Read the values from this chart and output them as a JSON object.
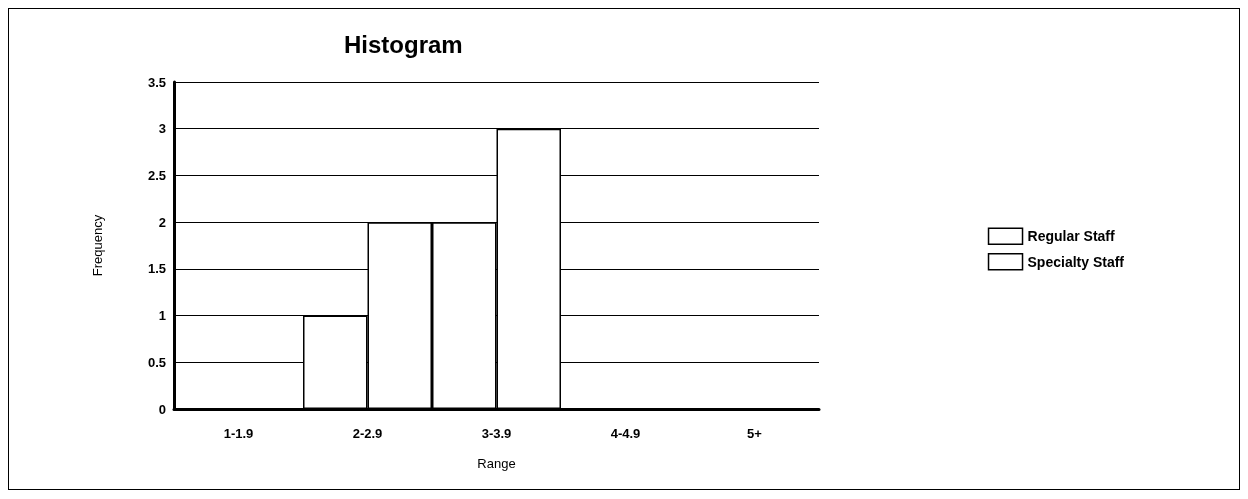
{
  "chart_data": {
    "type": "bar",
    "title": "Histogram",
    "xlabel": "Range",
    "ylabel": "Frequency",
    "categories": [
      "1-1.9",
      "2-2.9",
      "3-3.9",
      "4-4.9",
      "5+"
    ],
    "series": [
      {
        "name": "Regular Staff",
        "color": "#ffffff",
        "values": [
          0,
          1,
          2,
          0,
          0
        ]
      },
      {
        "name": "Specialty Staff",
        "color": "#ffffff",
        "values": [
          0,
          2,
          3,
          0,
          0
        ]
      }
    ],
    "ylim": [
      0,
      3.5
    ],
    "yticks": [
      0,
      0.5,
      1,
      1.5,
      2,
      2.5,
      3,
      3.5
    ],
    "grid": "y",
    "legend": "right"
  }
}
